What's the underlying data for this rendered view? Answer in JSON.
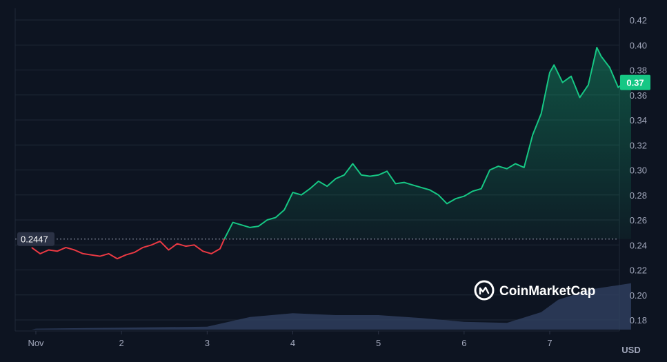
{
  "chart_data": {
    "type": "line",
    "x_unit": "days since Nov 1 (local)",
    "y_unit": "USD",
    "ylim": [
      0.17,
      0.425
    ],
    "xlim": [
      -0.05,
      6.95
    ],
    "y_ticks": [
      "0.42",
      "0.40",
      "0.38",
      "0.36",
      "0.34",
      "0.32",
      "0.30",
      "0.28",
      "0.26",
      "0.24",
      "0.22",
      "0.20",
      "0.18"
    ],
    "x_ticks": [
      {
        "x": 0.0,
        "label": "Nov"
      },
      {
        "x": 1.0,
        "label": "2"
      },
      {
        "x": 2.0,
        "label": "3"
      },
      {
        "x": 3.0,
        "label": "4"
      },
      {
        "x": 4.0,
        "label": "5"
      },
      {
        "x": 5.0,
        "label": "6"
      },
      {
        "x": 6.0,
        "label": "7"
      }
    ],
    "unit_label": "USD",
    "reference_value": 0.2447,
    "reference_label": "0.2447",
    "current_price": 0.37,
    "current_price_label": "0.37",
    "colors": {
      "up": "#16c784",
      "down": "#ea3943",
      "background": "#0d1421",
      "volume": "#334366",
      "grid": "#1f2937",
      "tick_text": "#a1a7bb"
    },
    "grid": true,
    "series": [
      {
        "values": [
          [
            -0.05,
            0.238
          ],
          [
            0.05,
            0.233
          ],
          [
            0.15,
            0.236
          ],
          [
            0.25,
            0.235
          ],
          [
            0.35,
            0.238
          ],
          [
            0.45,
            0.236
          ],
          [
            0.55,
            0.233
          ],
          [
            0.65,
            0.232
          ],
          [
            0.75,
            0.231
          ],
          [
            0.85,
            0.233
          ],
          [
            0.95,
            0.229
          ],
          [
            1.05,
            0.232
          ],
          [
            1.15,
            0.234
          ],
          [
            1.25,
            0.238
          ],
          [
            1.35,
            0.24
          ],
          [
            1.45,
            0.243
          ],
          [
            1.55,
            0.236
          ],
          [
            1.65,
            0.241
          ],
          [
            1.75,
            0.239
          ],
          [
            1.85,
            0.24
          ],
          [
            1.95,
            0.235
          ],
          [
            2.05,
            0.233
          ],
          [
            2.15,
            0.237
          ],
          [
            2.2,
            0.2447
          ],
          [
            2.3,
            0.258
          ],
          [
            2.4,
            0.256
          ],
          [
            2.5,
            0.254
          ],
          [
            2.6,
            0.255
          ],
          [
            2.7,
            0.26
          ],
          [
            2.8,
            0.262
          ],
          [
            2.9,
            0.268
          ],
          [
            3.0,
            0.282
          ],
          [
            3.1,
            0.28
          ],
          [
            3.2,
            0.285
          ],
          [
            3.3,
            0.291
          ],
          [
            3.4,
            0.287
          ],
          [
            3.5,
            0.293
          ],
          [
            3.6,
            0.296
          ],
          [
            3.7,
            0.305
          ],
          [
            3.8,
            0.296
          ],
          [
            3.9,
            0.295
          ],
          [
            4.0,
            0.296
          ],
          [
            4.1,
            0.299
          ],
          [
            4.2,
            0.289
          ],
          [
            4.3,
            0.29
          ],
          [
            4.4,
            0.288
          ],
          [
            4.5,
            0.286
          ],
          [
            4.6,
            0.284
          ],
          [
            4.7,
            0.28
          ],
          [
            4.8,
            0.273
          ],
          [
            4.9,
            0.277
          ],
          [
            5.0,
            0.279
          ],
          [
            5.1,
            0.283
          ],
          [
            5.2,
            0.285
          ],
          [
            5.3,
            0.3
          ],
          [
            5.4,
            0.303
          ],
          [
            5.5,
            0.301
          ],
          [
            5.6,
            0.305
          ],
          [
            5.7,
            0.302
          ],
          [
            5.8,
            0.328
          ],
          [
            5.9,
            0.345
          ],
          [
            6.0,
            0.378
          ],
          [
            6.05,
            0.384
          ],
          [
            6.15,
            0.37
          ],
          [
            6.25,
            0.375
          ],
          [
            6.35,
            0.358
          ],
          [
            6.45,
            0.368
          ],
          [
            6.55,
            0.398
          ],
          [
            6.6,
            0.391
          ],
          [
            6.7,
            0.382
          ],
          [
            6.8,
            0.366
          ],
          [
            6.9,
            0.372
          ],
          [
            6.95,
            0.37
          ]
        ]
      }
    ],
    "volume": [
      [
        0.0,
        1
      ],
      [
        1.0,
        2
      ],
      [
        2.0,
        3
      ],
      [
        2.5,
        13
      ],
      [
        3.0,
        17
      ],
      [
        3.5,
        15
      ],
      [
        4.0,
        15
      ],
      [
        4.5,
        12
      ],
      [
        5.0,
        8
      ],
      [
        5.5,
        7
      ],
      [
        5.9,
        18
      ],
      [
        6.1,
        31
      ],
      [
        6.5,
        42
      ],
      [
        6.95,
        48
      ]
    ]
  },
  "watermark": {
    "text": "CoinMarketCap"
  }
}
